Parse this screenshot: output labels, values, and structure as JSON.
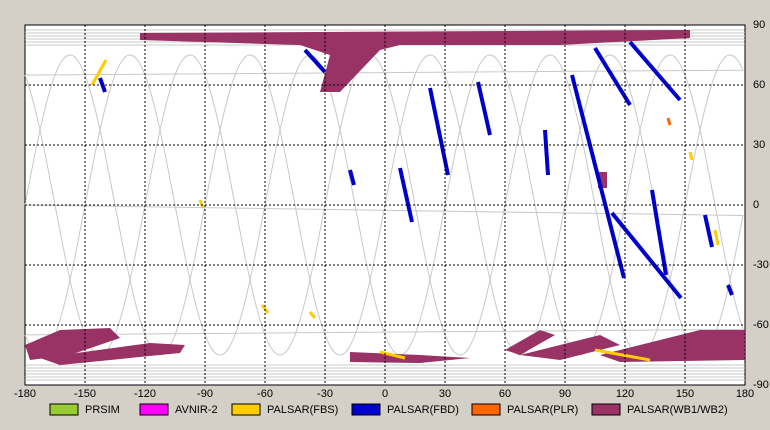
{
  "map": {
    "xlim": [
      -180,
      180
    ],
    "ylim": [
      -90,
      90
    ],
    "xticks": [
      -180,
      -150,
      -120,
      -90,
      -60,
      -30,
      0,
      30,
      60,
      90,
      120,
      150,
      180
    ],
    "yticks": [
      90,
      60,
      30,
      0,
      -30,
      -60,
      -90
    ],
    "legend": [
      {
        "label": "PRSIM",
        "color": "#99cc33"
      },
      {
        "label": "AVNIR-2",
        "color": "#ff00ff"
      },
      {
        "label": "PALSAR(FBS)",
        "color": "#ffcc00"
      },
      {
        "label": "PALSAR(FBD)",
        "color": "#0000cc"
      },
      {
        "label": "PALSAR(PLR)",
        "color": "#ff6600"
      },
      {
        "label": "PALSAR(WB1/WB2)",
        "color": "#993366"
      }
    ]
  }
}
